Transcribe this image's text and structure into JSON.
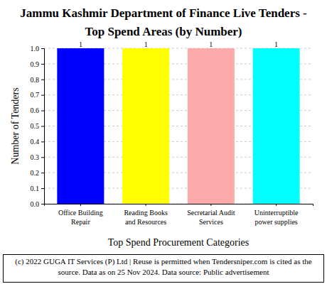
{
  "chart_data": {
    "type": "bar",
    "title": "Jammu Kashmir Department of Finance Live Tenders - Top Spend Areas (by Number)",
    "x_label": "Top Spend Procurement Categories",
    "y_label": "Number of Tenders",
    "categories": [
      "Office Building Repair",
      "Reading Books and Resources",
      "Secretarial Audit Services",
      "Uninterruptible power supplies"
    ],
    "values": [
      1,
      1,
      1,
      1
    ],
    "colors": [
      "#0000ff",
      "#ffff00",
      "#ffaaaa",
      "#00ffff"
    ],
    "ylim": [
      0,
      1
    ],
    "yticks": [
      {
        "value": 0,
        "label": "0.0"
      },
      0.1,
      0.2,
      0.3,
      0.4,
      0.5,
      0.6,
      0.7,
      0.8,
      0.9,
      {
        "value": 1,
        "label": "1.0"
      }
    ],
    "grid": true,
    "data_labels": true,
    "footer": "(c) 2022 GUGA IT Services (P) Ltd | Reuse is permitted when Tendersniper.com is cited as the source. Data as on 25 Nov 2024. Data source: Public advertisement"
  }
}
